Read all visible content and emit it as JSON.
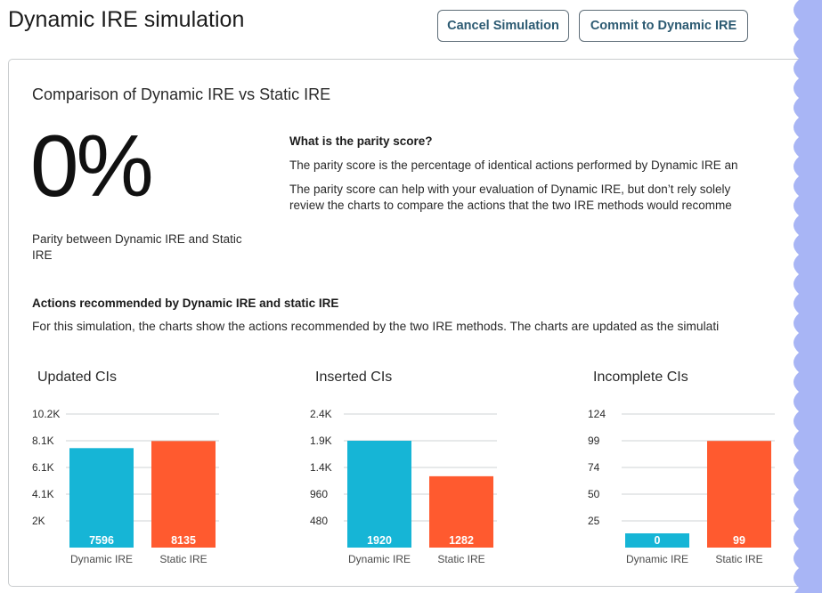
{
  "header": {
    "title": "Dynamic IRE simulation",
    "cancel_label": "Cancel Simulation",
    "commit_label": "Commit to Dynamic IRE"
  },
  "card": {
    "title": "Comparison of Dynamic IRE vs Static IRE",
    "parity_value": "0%",
    "parity_caption": "Parity between Dynamic IRE and Static IRE",
    "faq_heading": "What is the parity score?",
    "faq_p1": "The parity score is the percentage of identical actions performed by Dynamic IRE an",
    "faq_p2_line1": "The parity score can help with your evaluation of Dynamic IRE, but don’t rely solely",
    "faq_p2_line2": "review the charts to compare the actions that the two IRE methods would recomme",
    "actions_heading": "Actions recommended by Dynamic IRE and static IRE",
    "actions_text": "For this simulation, the charts show the actions recommended by the two IRE methods. The charts are updated as the simulati"
  },
  "colors": {
    "dynamic": "#16b5d6",
    "static": "#ff5a2f",
    "edge": "#a8b5f5"
  },
  "chart_data": [
    {
      "type": "bar",
      "title": "Updated CIs",
      "categories": [
        "Dynamic IRE",
        "Static IRE"
      ],
      "values": [
        7596,
        8135
      ],
      "ticks": [
        "2K",
        "4.1K",
        "6.1K",
        "8.1K",
        "10.2K"
      ],
      "tick_values": [
        2040,
        4080,
        6120,
        8160,
        10200
      ],
      "ylim": [
        0,
        10200
      ]
    },
    {
      "type": "bar",
      "title": "Inserted CIs",
      "categories": [
        "Dynamic IRE",
        "Static IRE"
      ],
      "values": [
        1920,
        1282
      ],
      "ticks": [
        "480",
        "960",
        "1.4K",
        "1.9K",
        "2.4K"
      ],
      "tick_values": [
        480,
        960,
        1440,
        1920,
        2400
      ],
      "ylim": [
        0,
        2400
      ]
    },
    {
      "type": "bar",
      "title": "Incomplete CIs",
      "categories": [
        "Dynamic IRE",
        "Static IRE"
      ],
      "values": [
        0,
        99
      ],
      "ticks": [
        "25",
        "50",
        "74",
        "99",
        "124"
      ],
      "tick_values": [
        24.8,
        49.6,
        74.4,
        99.2,
        124
      ],
      "ylim": [
        0,
        124
      ]
    }
  ]
}
